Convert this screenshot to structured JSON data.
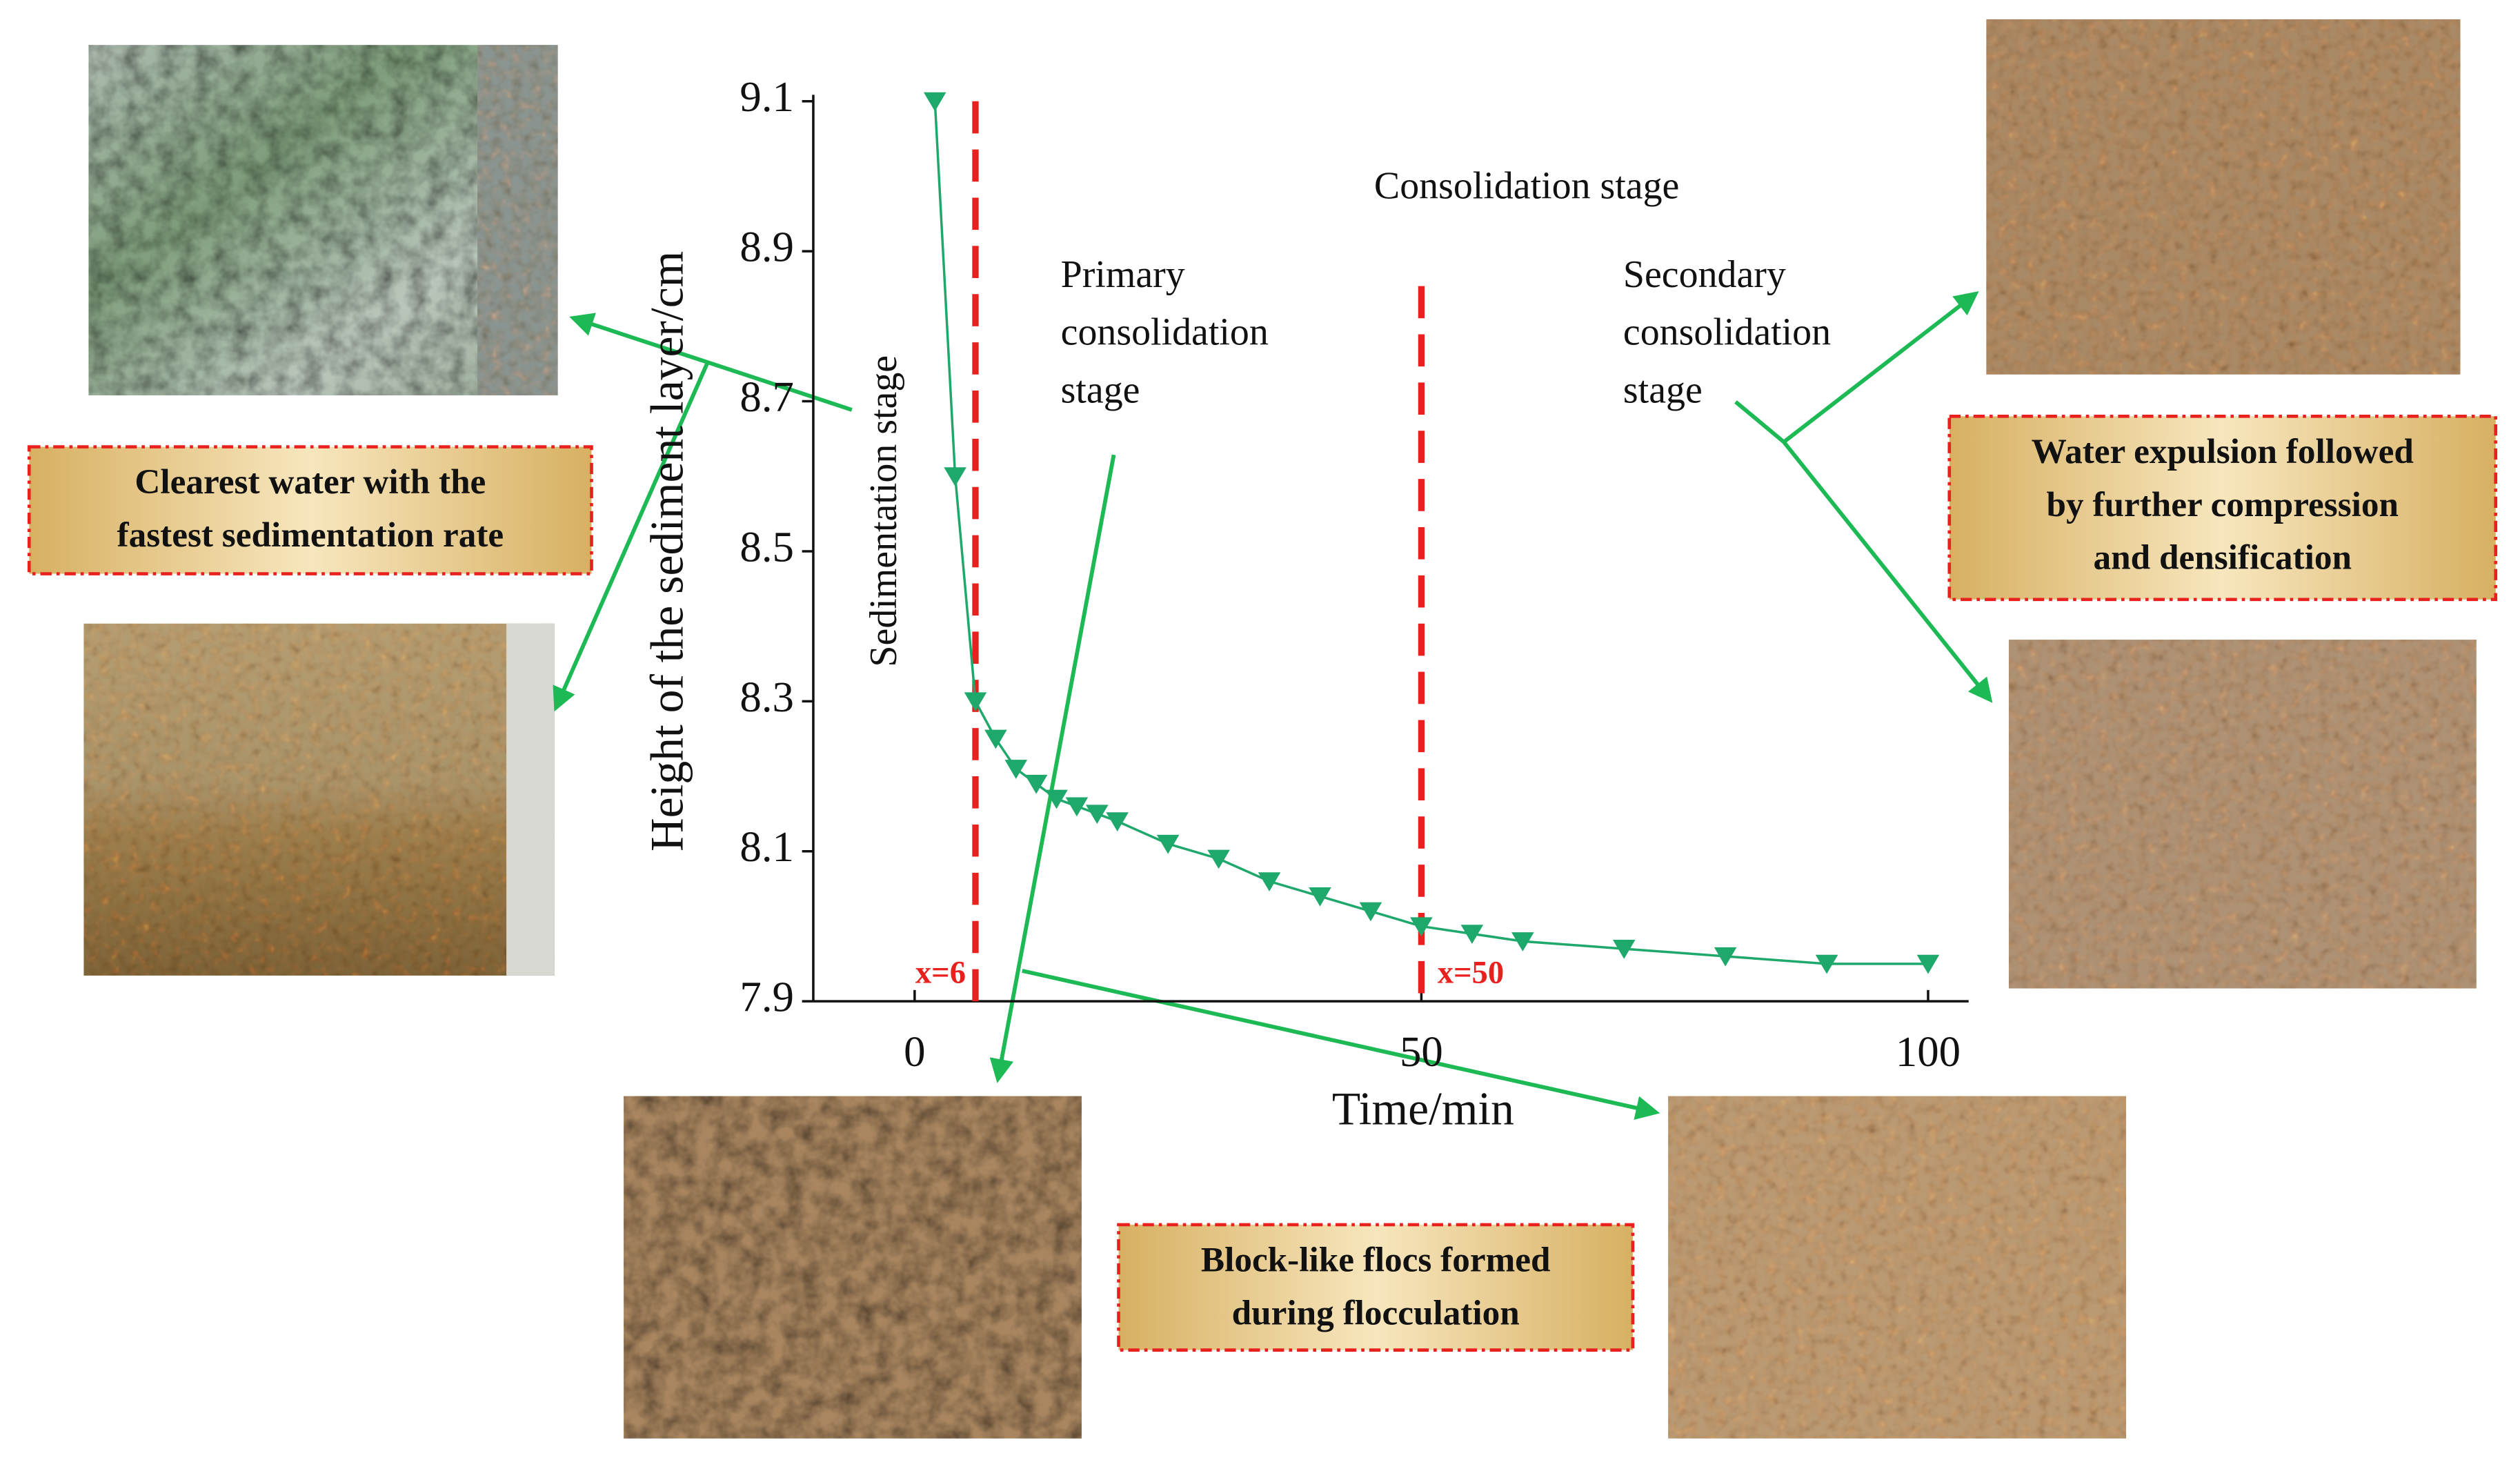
{
  "chart_data": {
    "type": "line",
    "x_label": "Time/min",
    "y_label": "Height of the sediment layer/cm",
    "xlim": [
      -10,
      104
    ],
    "ylim": [
      7.9,
      9.1
    ],
    "xticks": [
      0,
      50,
      100
    ],
    "yticks": [
      7.9,
      8.1,
      8.3,
      8.5,
      8.7,
      8.9,
      9.1
    ],
    "series": [
      {
        "name": "Height",
        "color": "#1fa86c",
        "x": [
          2,
          4,
          6,
          8,
          10,
          12,
          14,
          16,
          18,
          20,
          25,
          30,
          35,
          40,
          45,
          50,
          55,
          60,
          70,
          80,
          90,
          100
        ],
        "values": [
          9.1,
          8.6,
          8.3,
          8.25,
          8.21,
          8.19,
          8.17,
          8.16,
          8.15,
          8.14,
          8.11,
          8.09,
          8.06,
          8.04,
          8.02,
          8.0,
          7.99,
          7.98,
          7.97,
          7.96,
          7.95,
          7.95
        ]
      }
    ],
    "vlines": [
      {
        "value": 6,
        "label": "x=6",
        "color": "#e8201e"
      },
      {
        "value": 50,
        "label": "x=50",
        "color": "#e8201e"
      }
    ],
    "stage_labels": {
      "consolidation": "Consolidation stage",
      "sedimentation": "Sedimentation stage",
      "primary": [
        "Primary",
        "consolidation",
        "stage"
      ],
      "secondary": [
        "Secondary",
        "consolidation",
        "stage"
      ]
    },
    "callouts": [
      [
        "Clearest water with the",
        "fastest sedimentation rate"
      ],
      [
        "Water expulsion followed",
        "by further compression",
        "and densification"
      ],
      [
        "Block-like flocs formed",
        "during flocculation"
      ]
    ]
  }
}
